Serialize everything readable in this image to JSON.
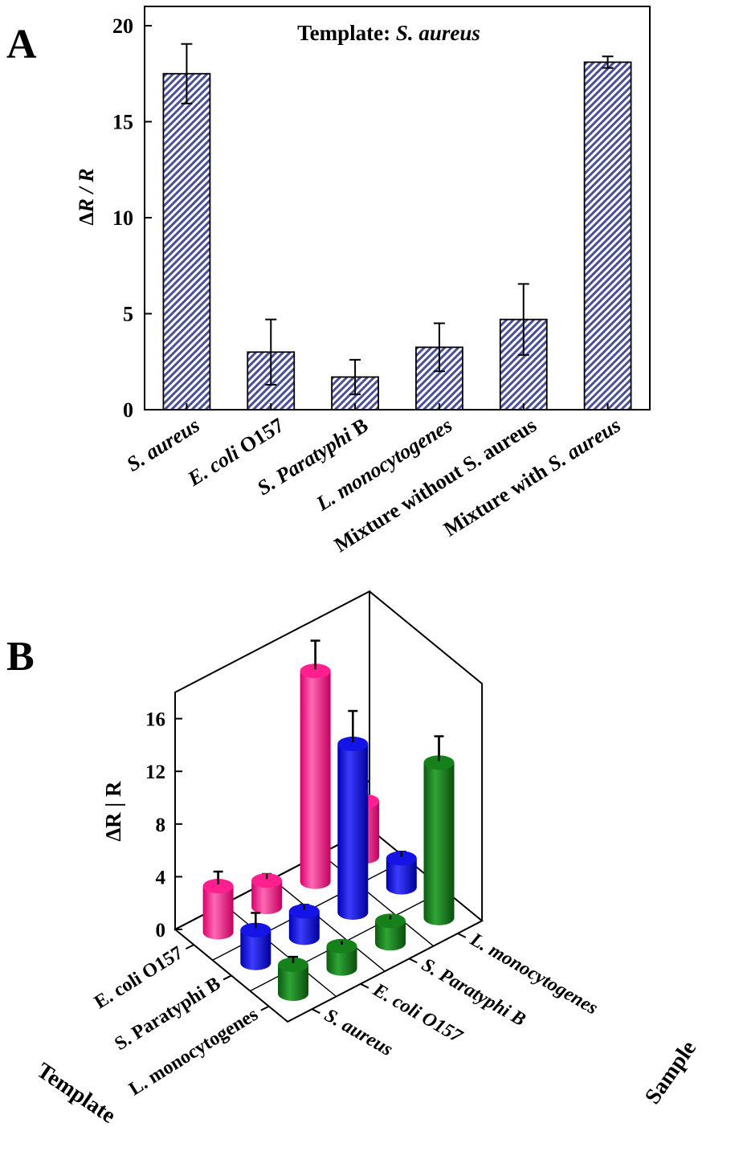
{
  "chart_data": [
    {
      "type": "bar",
      "panel_label": "A",
      "title_prefix": "Template: ",
      "title_italic": "S. aureus",
      "ylabel": "∆R / R",
      "ylim": [
        0,
        20
      ],
      "yticks": [
        0,
        5,
        10,
        15,
        20
      ],
      "categories": [
        "S. aureus",
        "E. coli O157",
        "S. Paratyphi B",
        "L. monocytogenes",
        "Mixture without S. aureus",
        "Mixture with S. aureus"
      ],
      "category_styles": [
        [
          {
            "t": "S. aureus",
            "i": true
          }
        ],
        [
          {
            "t": "E. coli",
            "i": true
          },
          {
            "t": " O157",
            "i": false
          }
        ],
        [
          {
            "t": "S. Paratyphi",
            "i": true
          },
          {
            "t": " B",
            "i": false
          }
        ],
        [
          {
            "t": "L. monocytogenes",
            "i": true
          }
        ],
        [
          {
            "t": "Mixture without S. aureus",
            "i": false
          }
        ],
        [
          {
            "t": "Mixture with ",
            "i": false
          },
          {
            "t": "S. aureus",
            "i": true
          }
        ]
      ],
      "values": [
        17.5,
        3.0,
        1.7,
        3.25,
        4.7,
        18.1
      ],
      "errors": [
        1.55,
        1.7,
        0.9,
        1.25,
        1.85,
        0.3
      ],
      "bar_color": "#4a4f9a",
      "grid": false
    },
    {
      "type": "bar3d",
      "panel_label": "B",
      "zlabel": "∆R | R",
      "zlim": [
        0,
        18
      ],
      "zticks": [
        0,
        4,
        8,
        12,
        16
      ],
      "template_axis_title": "Template",
      "sample_axis_title": "Sample",
      "templates": [
        "E. coli O157",
        "S. Paratyphi B",
        "L. monocytogenes"
      ],
      "samples": [
        "S. aureus",
        "E. coli O157",
        "S. Paratyphi B",
        "L. monocytogenes"
      ],
      "template_colors": [
        "#ff1f8e",
        "#1414e6",
        "#16801a"
      ],
      "series": [
        {
          "values": [
            3.5,
            2.0,
            16.0,
            4.2
          ],
          "errors": [
            1.1,
            0.5,
            2.3,
            1.5
          ]
        },
        {
          "values": [
            2.5,
            2.0,
            12.8,
            2.2
          ],
          "errors": [
            1.3,
            0.5,
            2.5,
            0.5
          ]
        },
        {
          "values": [
            2.2,
            1.7,
            1.7,
            11.8
          ],
          "errors": [
            0.6,
            0.4,
            0.4,
            2.0
          ]
        }
      ]
    }
  ]
}
